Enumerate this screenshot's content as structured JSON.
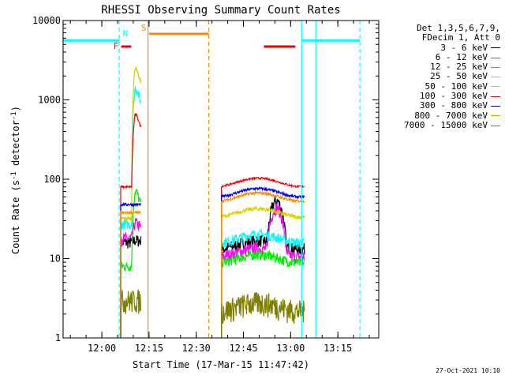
{
  "chart_data": {
    "type": "line",
    "title": "RHESSI Observing Summary Count Rates",
    "xlabel": "Start Time (17-Mar-15 11:47:42)",
    "ylabel": "Count Rate (s-1 detector-1)",
    "ylabel_parts": {
      "prefix": "Count Rate (s",
      "sup1": "-1",
      "mid": " detector",
      "sup2": "-1",
      "suffix": ")"
    },
    "y_scale": "log",
    "ylim": [
      1,
      10000
    ],
    "xlim": [
      "11:47:42",
      "13:28:00"
    ],
    "x_ticks": [
      "12:00",
      "12:15",
      "12:30",
      "12:45",
      "13:00",
      "13:15"
    ],
    "y_ticks": [
      "1",
      "10",
      "100",
      "1000",
      "10000"
    ],
    "legend_header": [
      "Det 1,3,5,6,7,9,",
      "FDecim 1, Att 0"
    ],
    "series": [
      {
        "name": "3 - 6 keV",
        "color": "#000000",
        "level_first": 16,
        "level_second": 15,
        "spike": 17,
        "var": 0.18
      },
      {
        "name": "6 - 12 keV",
        "color": "#ff00ff",
        "level_first": 18,
        "level_second": 12,
        "spike": 28,
        "var": 0.18
      },
      {
        "name": "12 - 25 keV",
        "color": "#00ee00",
        "level_first": 8,
        "level_second": 10,
        "spike": 70,
        "var": 0.15
      },
      {
        "name": "25 - 50 keV",
        "color": "#00ffff",
        "level_first": 27,
        "level_second": 18,
        "spike": 1400,
        "var": 0.15
      },
      {
        "name": "50 - 100 keV",
        "color": "#ddd000",
        "level_first": 32,
        "level_second": 38,
        "spike": 2500,
        "var": 0.06
      },
      {
        "name": "100 - 300 keV",
        "color": "#ee0000",
        "level_first": 80,
        "level_second": 92,
        "spike": 650,
        "var": 0.03
      },
      {
        "name": "300 - 800 keV",
        "color": "#0000ee",
        "level_first": 48,
        "level_second": 68,
        "spike": 48,
        "var": 0.04
      },
      {
        "name": "800 - 7000 keV",
        "color": "#ff8c00",
        "level_first": 38,
        "level_second": 60,
        "spike": 38,
        "var": 0.04
      },
      {
        "name": "7000 - 15000 keV",
        "color": "#808000",
        "level_first": 3,
        "level_second": 2.5,
        "spike": 3,
        "var": 0.35
      }
    ],
    "segments": [
      {
        "start": "12:06:00",
        "end": "12:12:30",
        "active": true
      },
      {
        "start": "12:38:00",
        "end": "13:04:30",
        "active": true
      }
    ],
    "flags": [
      {
        "label": "N",
        "color": "#00ffff",
        "y": 5600,
        "bars": [
          [
            "11:47:42",
            "12:05:30"
          ],
          [
            "13:03:30",
            "13:22:00"
          ]
        ],
        "lines": [
          "12:05:30",
          "13:03:30",
          "13:22:00"
        ],
        "line_styles": [
          "dashed",
          "solid",
          "dashed"
        ],
        "label_at": "12:07:30",
        "label_y": 6300
      },
      {
        "label": "F",
        "color": "#ee0000",
        "y": 4700,
        "bars": [
          [
            "12:06:10",
            "12:09:20"
          ],
          [
            "12:51:30",
            "13:01:30"
          ]
        ],
        "lines": [],
        "label_at": "12:04:30",
        "label_y": 4400
      },
      {
        "label": "S",
        "color": "#ff8c00",
        "y": 6800,
        "bars": [
          [
            "12:15:00",
            "12:34:00"
          ]
        ],
        "lines": [
          "12:14:40",
          "12:34:00"
        ],
        "line_styles": [
          "solid",
          "dashed"
        ],
        "label_at": "12:13:20",
        "label_y": 7400
      }
    ],
    "extra_lines": [
      {
        "at": "11:47:40",
        "color": "#00ffff",
        "style": "solid"
      },
      {
        "at": "13:08:00",
        "color": "#00ffff",
        "style": "solid"
      }
    ],
    "footer_date": "27-Oct-2021 10:10"
  }
}
